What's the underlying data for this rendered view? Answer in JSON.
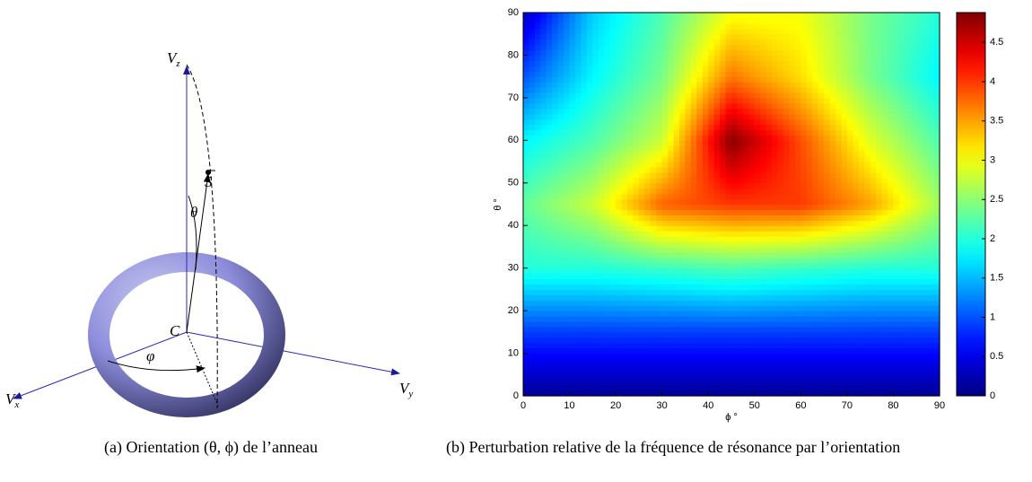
{
  "diagram": {
    "axes": [
      {
        "name": "V",
        "sub": "z"
      },
      {
        "name": "V",
        "sub": "x"
      },
      {
        "name": "V",
        "sub": "y"
      }
    ],
    "vector": "S",
    "origin": "C",
    "polar_angle": "θ",
    "azimuth_angle": "φ"
  },
  "captions": [
    "(a) Orientation (θ, ϕ) de l’anneau",
    "(b) Perturbation relative de la fréquence de résonance par l’orientation"
  ],
  "chart_data": {
    "type": "contour",
    "colormap": "jet",
    "x": [
      0,
      15,
      30,
      45,
      60,
      75,
      90
    ],
    "y": [
      0,
      15,
      30,
      45,
      60,
      75,
      90
    ],
    "z": [
      [
        0.1,
        0.1,
        0.1,
        0.1,
        0.1,
        0.1,
        0.1
      ],
      [
        0.9,
        0.9,
        0.9,
        0.9,
        0.9,
        0.9,
        0.9
      ],
      [
        2.0,
        2.0,
        2.1,
        2.2,
        2.1,
        2.0,
        2.0
      ],
      [
        2.3,
        2.8,
        3.8,
        4.0,
        4.0,
        3.5,
        2.6
      ],
      [
        1.8,
        2.2,
        2.8,
        4.85,
        3.9,
        2.9,
        2.2
      ],
      [
        1.0,
        1.8,
        2.4,
        3.7,
        3.2,
        2.4,
        1.8
      ],
      [
        0.3,
        1.6,
        2.2,
        3.0,
        3.0,
        2.4,
        2.0
      ]
    ],
    "xlim": [
      0,
      90
    ],
    "ylim": [
      0,
      90
    ],
    "xticks": [
      0,
      10,
      20,
      30,
      40,
      50,
      60,
      70,
      80,
      90
    ],
    "yticks": [
      0,
      10,
      20,
      30,
      40,
      50,
      60,
      70,
      80,
      90
    ],
    "xlabel": "ϕ °",
    "ylabel": "θ °",
    "zlim": [
      0,
      4.88
    ],
    "zticks": [
      0,
      0.5,
      1,
      1.5,
      2,
      2.5,
      3,
      3.5,
      4,
      4.5
    ]
  }
}
